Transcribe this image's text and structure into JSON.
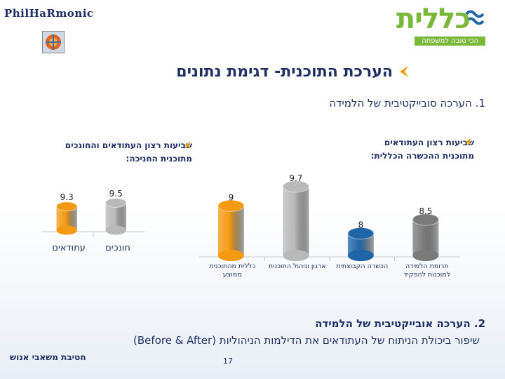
{
  "branding": {
    "left_logo_text": "PhilHaRmonic",
    "right_logo_word": "כללית",
    "right_logo_slogan": "הכי טובה למשפחה"
  },
  "title": "הערכת התוכנית- דגימת נתונים",
  "section1_heading": "1. הערכה סובייקטיבית של הלמידה",
  "section2_heading": "2. הערכה אובייקטיבית של הלמידה",
  "section2_sub": "שיפור ביכולת הניתוח של העתודאים את הדילמות הניהוליות (Before & After)",
  "footer": {
    "division": "חטיבת משאבי אנוש",
    "page_number": "17"
  },
  "colors": {
    "navy": "#1f2f66",
    "orange": "#f39a12",
    "gray": "#b9b9b9",
    "blue": "#1f66a8",
    "dark_gray": "#7a7a7a",
    "accent": "#e8a000"
  },
  "chart_data": [
    {
      "type": "bar",
      "title_line1": "שביעות רצון העתודאים",
      "title_line2": "מתוכנית ההכשרה הכללית:",
      "categories": [
        "כללית מהתוכנית ממוצע",
        "ארגון וניהול התוכנית",
        "הכשרה הקבוצתית",
        "תרומת הלמידה למוכנות להפקיד"
      ],
      "values": [
        9,
        9.7,
        8,
        8.5
      ],
      "value_labels": [
        "9",
        "9.7",
        "8",
        "8.5"
      ],
      "ylim": [
        0,
        10
      ]
    },
    {
      "type": "bar",
      "title_line1": "שביעות רצון העתודאים והחונכים",
      "title_line2": "מתוכנית החניכה:",
      "categories": [
        "עתודאים",
        "חונכים"
      ],
      "values": [
        9.3,
        9.5
      ],
      "value_labels": [
        "9.3",
        "9.5"
      ],
      "ylim": [
        0,
        10
      ]
    }
  ]
}
